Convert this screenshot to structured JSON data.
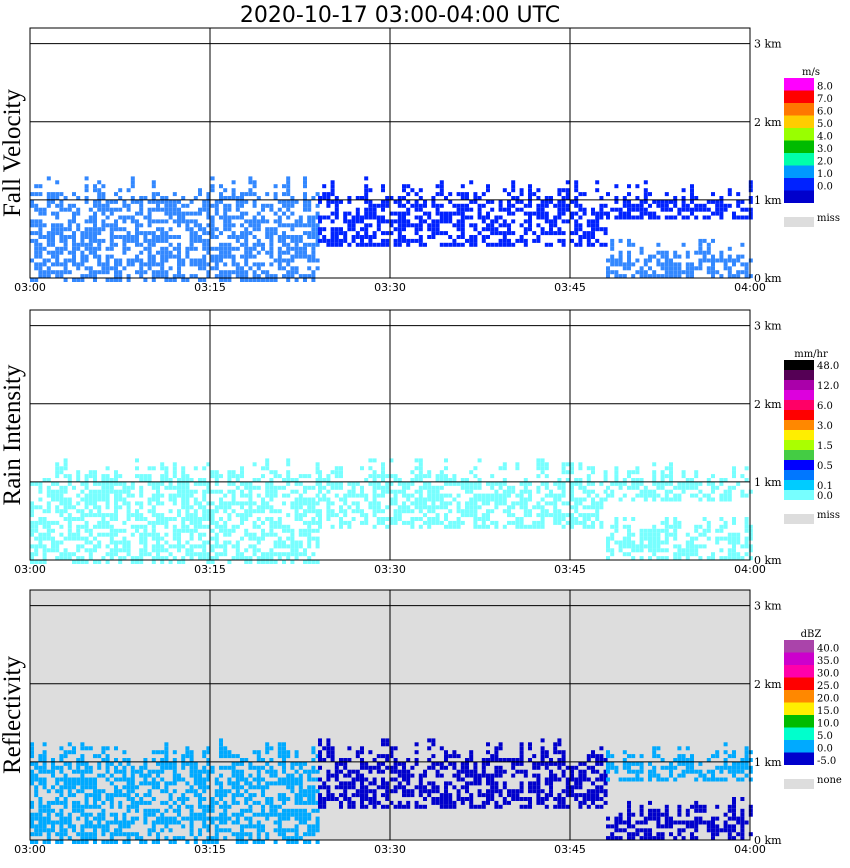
{
  "title": "2020-10-17   03:00-04:00 UTC",
  "colors": {
    "grid": "#000000",
    "miss": "#dddddd",
    "reflectivity_background": "#dddddd"
  },
  "chart_data": [
    {
      "type": "heatmap",
      "name": "fall-velocity",
      "ylabel": "Fall Velocity",
      "x_ticks": [
        "03:00",
        "03:15",
        "03:30",
        "03:45",
        "04:00"
      ],
      "y_ticks": [
        "0 km",
        "1 km",
        "2 km",
        "3 km"
      ],
      "xlim": [
        0,
        60
      ],
      "ylim": [
        0,
        3.2
      ],
      "grid": true,
      "colorbar": {
        "unit": "m/s",
        "levels": [
          "8.0",
          "7.0",
          "6.0",
          "5.0",
          "4.0",
          "3.0",
          "2.0",
          "1.0",
          "0.0"
        ],
        "colors": [
          "#ff00ff",
          "#ff0000",
          "#ff7700",
          "#ffcc00",
          "#99ff00",
          "#00bb00",
          "#00ffaa",
          "#0099ff",
          "#0022ff",
          "#0000cc"
        ],
        "missing_label": "miss",
        "missing_color": "#dddddd"
      },
      "echo_regions": [
        {
          "x": [
            0,
            24
          ],
          "base_km": 0,
          "top_km": 1.35,
          "color": "#3388ff"
        },
        {
          "x": [
            24,
            48
          ],
          "base_km": 0.45,
          "top_km": 1.35,
          "color": "#0022ff"
        },
        {
          "x": [
            48,
            60
          ],
          "base_km": 0.8,
          "top_km": 1.3,
          "color": "#0022ff"
        },
        {
          "x": [
            48,
            60
          ],
          "base_km": 0.05,
          "top_km": 0.6,
          "color": "#3388ff"
        }
      ]
    },
    {
      "type": "heatmap",
      "name": "rain-intensity",
      "ylabel": "Rain Intensity",
      "x_ticks": [
        "03:00",
        "03:15",
        "03:30",
        "03:45",
        "04:00"
      ],
      "y_ticks": [
        "0 km",
        "1 km",
        "2 km",
        "3 km"
      ],
      "xlim": [
        0,
        60
      ],
      "ylim": [
        0,
        3.2
      ],
      "grid": true,
      "colorbar": {
        "unit": "mm/hr",
        "levels": [
          "48.0",
          "12.0",
          "6.0",
          "3.0",
          "1.5",
          "0.5",
          "0.1",
          "0.0"
        ],
        "level_rows": [
          0,
          2,
          4,
          6,
          8,
          10,
          12,
          13
        ],
        "colors": [
          "#000000",
          "#550055",
          "#aa00aa",
          "#dd00dd",
          "#ff0066",
          "#ff0000",
          "#ff8800",
          "#ffee00",
          "#aaff00",
          "#44cc44",
          "#0000ff",
          "#0077ff",
          "#00ccff",
          "#77ffff"
        ],
        "missing_label": "miss",
        "missing_color": "#dddddd"
      },
      "echo_regions": [
        {
          "x": [
            0,
            24
          ],
          "base_km": 0,
          "top_km": 1.35,
          "color": "#77ffff"
        },
        {
          "x": [
            24,
            48
          ],
          "base_km": 0.45,
          "top_km": 1.35,
          "color": "#77ffff"
        },
        {
          "x": [
            48,
            60
          ],
          "base_km": 0.8,
          "top_km": 1.3,
          "color": "#77ffff"
        },
        {
          "x": [
            48,
            60
          ],
          "base_km": 0.05,
          "top_km": 0.6,
          "color": "#77ffff"
        }
      ]
    },
    {
      "type": "heatmap",
      "name": "reflectivity",
      "ylabel": "Reflectivity",
      "x_ticks": [
        "03:00",
        "03:15",
        "03:30",
        "03:45",
        "04:00"
      ],
      "y_ticks": [
        "0 km",
        "1 km",
        "2 km",
        "3 km"
      ],
      "xlim": [
        0,
        60
      ],
      "ylim": [
        0,
        3.2
      ],
      "grid": true,
      "colorbar": {
        "unit": "dBZ",
        "levels": [
          "40.0",
          "35.0",
          "30.0",
          "25.0",
          "20.0",
          "15.0",
          "10.0",
          "5.0",
          "0.0",
          "-5.0"
        ],
        "colors": [
          "#aa44aa",
          "#cc00cc",
          "#ff00aa",
          "#ff0000",
          "#ff8800",
          "#ffee00",
          "#00bb00",
          "#00ffcc",
          "#00aaff",
          "#0000cc"
        ],
        "missing_label": "none",
        "missing_color": "#dddddd"
      },
      "echo_regions": [
        {
          "x": [
            0,
            24
          ],
          "base_km": 0,
          "top_km": 1.35,
          "color": "#00aaff"
        },
        {
          "x": [
            24,
            48
          ],
          "base_km": 0.45,
          "top_km": 1.35,
          "color": "#0000cc"
        },
        {
          "x": [
            48,
            60
          ],
          "base_km": 0.8,
          "top_km": 1.3,
          "color": "#00aaff"
        },
        {
          "x": [
            48,
            60
          ],
          "base_km": 0.05,
          "top_km": 0.6,
          "color": "#0000cc"
        }
      ]
    }
  ]
}
